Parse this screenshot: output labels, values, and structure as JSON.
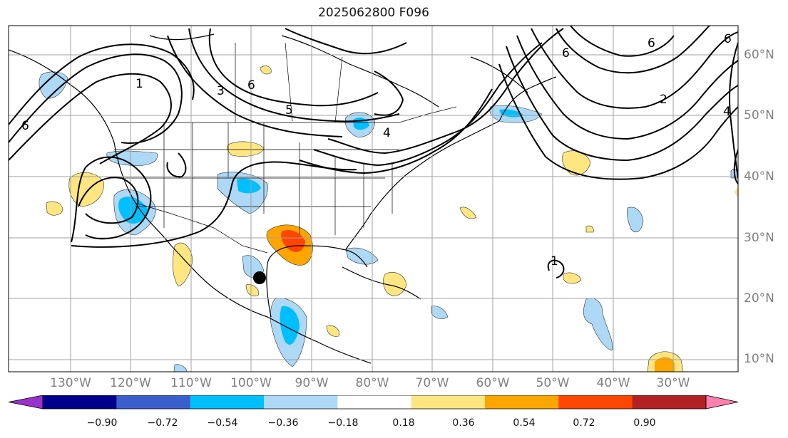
{
  "title": "2025062800 F096",
  "longitude_labels": [
    "130°W",
    "120°W",
    "110°W",
    "100°W",
    "90°W",
    "80°W",
    "70°W",
    "60°W",
    "50°W",
    "40°W",
    "30°W"
  ],
  "latitude_labels": [
    "60°N",
    "50°N",
    "40°N",
    "30°N",
    "20°N",
    "10°N"
  ],
  "colorbar": {
    "tick_labels": [
      "−0.90",
      "−0.72",
      "−0.54",
      "−0.36",
      "−0.18",
      "0.18",
      "0.36",
      "0.54",
      "0.72",
      "0.90"
    ],
    "colors": [
      "#9932cc",
      "#00008b",
      "#3a5fcd",
      "#00bfff",
      "#add8f6",
      "#ffffff",
      "#ffe680",
      "#ffa500",
      "#ff4500",
      "#b22222",
      "#ff7fae"
    ]
  },
  "contour_labels": [
    "1",
    "3",
    "6",
    "5",
    "6",
    "2",
    "6",
    "6",
    "6",
    "4",
    "4",
    "1"
  ],
  "marker": "storm-center-dot"
}
